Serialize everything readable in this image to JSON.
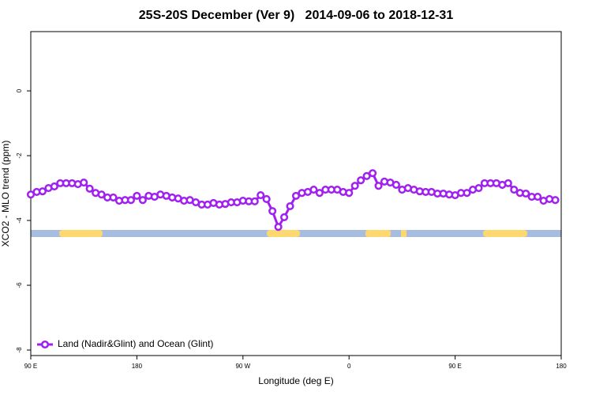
{
  "chart_data": {
    "type": "line",
    "title": "25S-20S December (Ver 9)   2014-09-06 to 2018-12-31",
    "x_label": "Longitude (deg E)",
    "y_label": "XCO2 - MLO trend (ppm)",
    "xlim": [
      90,
      540
    ],
    "xticks": [
      {
        "value": 90,
        "label": "90 E"
      },
      {
        "value": 180,
        "label": "180"
      },
      {
        "value": 270,
        "label": "90 W"
      },
      {
        "value": 360,
        "label": "0"
      },
      {
        "value": 450,
        "label": "90 E"
      },
      {
        "value": 540,
        "label": "180"
      }
    ],
    "ylim": [
      -8.17,
      1.83
    ],
    "yticks": [
      -8,
      -6,
      -4,
      -2,
      0
    ],
    "legend": "bottom-left",
    "series": [
      {
        "name": "Land (Nadir&Glint) and Ocean (Glint)",
        "color": "#a020f0",
        "x": [
          90,
          95,
          100,
          105,
          110,
          115,
          120,
          125,
          130,
          135,
          140,
          145,
          150,
          155,
          160,
          165,
          170,
          175,
          180,
          185,
          190,
          195,
          200,
          205,
          210,
          215,
          220,
          225,
          230,
          235,
          240,
          245,
          250,
          255,
          260,
          265,
          270,
          275,
          280,
          285,
          290,
          295,
          300,
          305,
          310,
          315,
          320,
          325,
          330,
          335,
          340,
          345,
          350,
          355,
          360,
          365,
          370,
          375,
          380,
          385,
          390,
          395,
          400,
          405,
          410,
          415,
          420,
          425,
          430,
          435,
          440,
          445,
          450,
          455,
          460,
          465,
          470,
          475,
          480,
          485,
          490,
          495,
          500,
          505,
          510,
          515,
          520,
          525,
          530,
          535
        ],
        "values": [
          -3.2,
          -3.12,
          -3.1,
          -3.0,
          -2.95,
          -2.85,
          -2.85,
          -2.85,
          -2.88,
          -2.83,
          -3.02,
          -3.15,
          -3.2,
          -3.29,
          -3.29,
          -3.39,
          -3.37,
          -3.37,
          -3.24,
          -3.37,
          -3.24,
          -3.27,
          -3.2,
          -3.24,
          -3.29,
          -3.32,
          -3.39,
          -3.37,
          -3.44,
          -3.51,
          -3.51,
          -3.46,
          -3.51,
          -3.49,
          -3.44,
          -3.44,
          -3.39,
          -3.41,
          -3.41,
          -3.22,
          -3.34,
          -3.71,
          -4.2,
          -3.9,
          -3.56,
          -3.24,
          -3.15,
          -3.12,
          -3.05,
          -3.15,
          -3.05,
          -3.05,
          -3.05,
          -3.12,
          -3.15,
          -2.93,
          -2.76,
          -2.63,
          -2.54,
          -2.93,
          -2.8,
          -2.83,
          -2.9,
          -3.05,
          -3.0,
          -3.05,
          -3.1,
          -3.12,
          -3.12,
          -3.17,
          -3.17,
          -3.2,
          -3.22,
          -3.15,
          -3.15,
          -3.05,
          -3.0,
          -2.85,
          -2.85,
          -2.85,
          -2.9,
          -2.85,
          -3.05,
          -3.15,
          -3.17,
          -3.27,
          -3.27,
          -3.39,
          -3.34,
          -3.37
        ]
      }
    ]
  }
}
